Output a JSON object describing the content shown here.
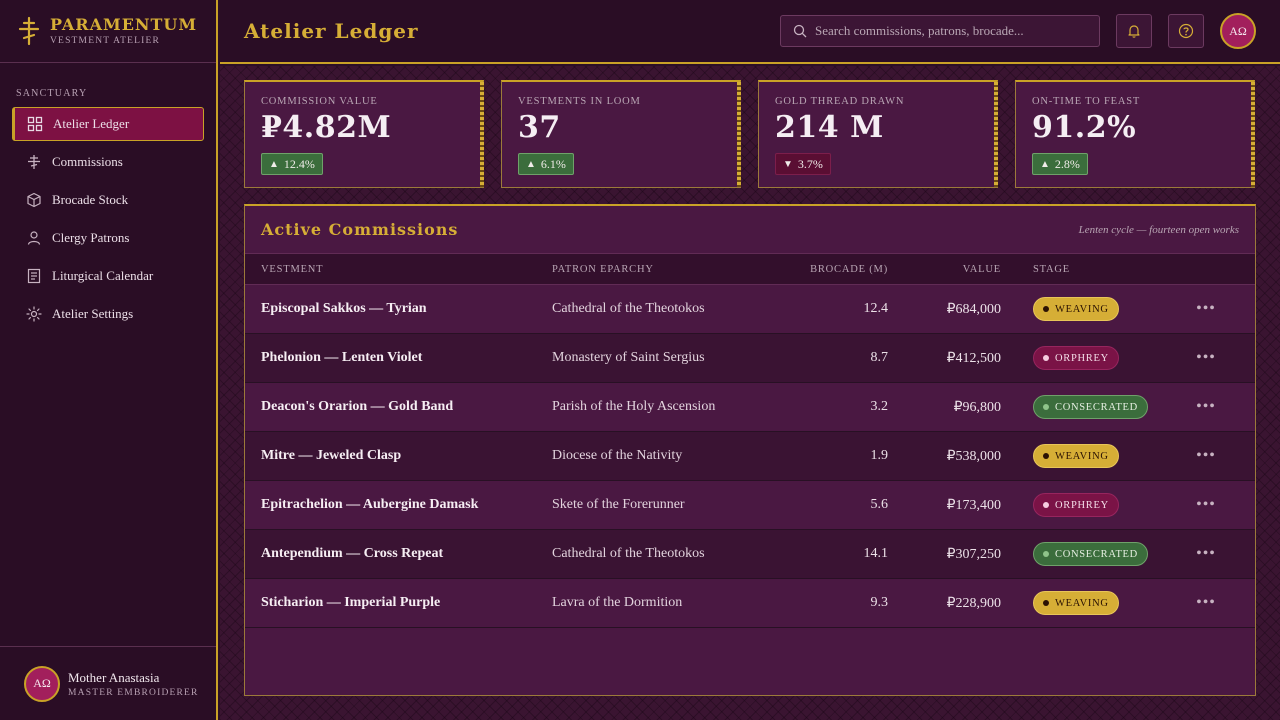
{
  "brand": {
    "name": "PARAMENTUM",
    "subtitle": "VESTMENT ATELIER"
  },
  "sidebar": {
    "section_label": "SANCTUARY",
    "items": [
      {
        "label": "Atelier Ledger",
        "icon": "grid-icon",
        "active": true
      },
      {
        "label": "Commissions",
        "icon": "cross-icon"
      },
      {
        "label": "Brocade Stock",
        "icon": "cube-icon"
      },
      {
        "label": "Clergy Patrons",
        "icon": "person-icon"
      },
      {
        "label": "Liturgical Calendar",
        "icon": "book-icon"
      },
      {
        "label": "Atelier Settings",
        "icon": "gear-icon"
      }
    ],
    "user": {
      "initials": "ΑΩ",
      "name": "Mother Anastasia",
      "role": "MASTER EMBROIDERER"
    }
  },
  "header": {
    "title": "Atelier Ledger",
    "search_placeholder": "Search commissions, patrons, brocade...",
    "avatar_initials": "ΑΩ"
  },
  "kpis": [
    {
      "label": "COMMISSION VALUE",
      "value": "₽4.82M",
      "delta": "12.4%",
      "direction": "up"
    },
    {
      "label": "VESTMENTS IN LOOM",
      "value": "37",
      "delta": "6.1%",
      "direction": "up"
    },
    {
      "label": "GOLD THREAD DRAWN",
      "value": "214 M",
      "delta": "3.7%",
      "direction": "down"
    },
    {
      "label": "ON-TIME TO FEAST",
      "value": "91.2%",
      "delta": "2.8%",
      "direction": "up"
    }
  ],
  "commissions": {
    "title": "Active Commissions",
    "note": "Lenten cycle — fourteen open works",
    "columns": {
      "vestment": "VESTMENT",
      "patron": "PATRON EPARCHY",
      "brocade": "BROCADE (M)",
      "value": "VALUE",
      "stage": "STAGE"
    },
    "rows": [
      {
        "vestment": "Episcopal Sakkos — Tyrian",
        "patron": "Cathedral of the Theotokos",
        "brocade": "12.4",
        "value": "₽684,000",
        "stage": "WEAVING",
        "stage_class": "weaving"
      },
      {
        "vestment": "Phelonion — Lenten Violet",
        "patron": "Monastery of Saint Sergius",
        "brocade": "8.7",
        "value": "₽412,500",
        "stage": "ORPHREY",
        "stage_class": "orphrey"
      },
      {
        "vestment": "Deacon's Orarion — Gold Band",
        "patron": "Parish of the Holy Ascension",
        "brocade": "3.2",
        "value": "₽96,800",
        "stage": "CONSECRATED",
        "stage_class": "consecrated"
      },
      {
        "vestment": "Mitre — Jeweled Clasp",
        "patron": "Diocese of the Nativity",
        "brocade": "1.9",
        "value": "₽538,000",
        "stage": "WEAVING",
        "stage_class": "weaving"
      },
      {
        "vestment": "Epitrachelion — Aubergine Damask",
        "patron": "Skete of the Forerunner",
        "brocade": "5.6",
        "value": "₽173,400",
        "stage": "ORPHREY",
        "stage_class": "orphrey"
      },
      {
        "vestment": "Antependium — Cross Repeat",
        "patron": "Cathedral of the Theotokos",
        "brocade": "14.1",
        "value": "₽307,250",
        "stage": "CONSECRATED",
        "stage_class": "consecrated"
      },
      {
        "vestment": "Sticharion — Imperial Purple",
        "patron": "Lavra of the Dormition",
        "brocade": "9.3",
        "value": "₽228,900",
        "stage": "WEAVING",
        "stage_class": "weaving"
      }
    ],
    "more_label": "•••"
  },
  "colors": {
    "accent_gold": "#c9a227",
    "wine": "#7d1143",
    "background": "#2c0f27"
  }
}
